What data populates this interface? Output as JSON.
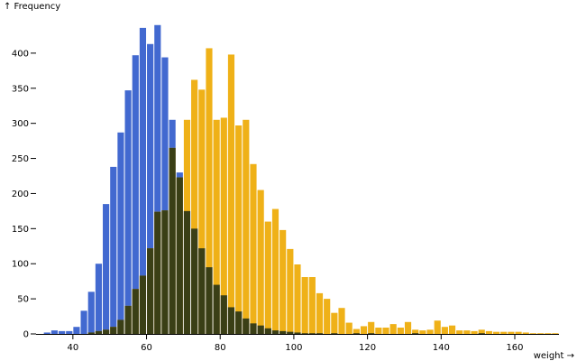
{
  "chart_data": {
    "type": "bar",
    "xlabel": "weight →",
    "ylabel": "↑ Frequency",
    "xlim": [
      30,
      172
    ],
    "ylim": [
      0,
      450
    ],
    "x_ticks": [
      40,
      60,
      80,
      100,
      120,
      140,
      160
    ],
    "y_ticks": [
      0,
      50,
      100,
      150,
      200,
      250,
      300,
      350,
      400
    ],
    "bin_width": 2,
    "bin_starts": [
      30,
      32,
      34,
      36,
      38,
      40,
      42,
      44,
      46,
      48,
      50,
      52,
      54,
      56,
      58,
      60,
      62,
      64,
      66,
      68,
      70,
      72,
      74,
      76,
      78,
      80,
      82,
      84,
      86,
      88,
      90,
      92,
      94,
      96,
      98,
      100,
      102,
      104,
      106,
      108,
      110,
      112,
      114,
      116,
      118,
      120,
      122,
      124,
      126,
      128,
      130,
      132,
      134,
      136,
      138,
      140,
      142,
      144,
      146,
      148,
      150,
      152,
      154,
      156,
      158,
      160,
      162,
      164,
      166,
      168,
      170
    ],
    "overlap_color": "#3a3f16",
    "series": [
      {
        "color": "#4269d0",
        "values": [
          0,
          2,
          5,
          4,
          4,
          10,
          33,
          60,
          100,
          185,
          238,
          287,
          347,
          397,
          436,
          413,
          440,
          394,
          305,
          230,
          175,
          150,
          122,
          95,
          70,
          55,
          38,
          32,
          22,
          15,
          12,
          8,
          5,
          4,
          3,
          2,
          1,
          1,
          1,
          0,
          1,
          0,
          0,
          1,
          0,
          1,
          0,
          0,
          0,
          0,
          0,
          1,
          0,
          0,
          0,
          0,
          0,
          0,
          0,
          0,
          1,
          0,
          0,
          0,
          0,
          0,
          0,
          0,
          0,
          0,
          0
        ]
      },
      {
        "color": "#efb118",
        "values": [
          0,
          0,
          0,
          0,
          0,
          0,
          0,
          2,
          4,
          6,
          10,
          20,
          40,
          64,
          83,
          122,
          174,
          176,
          265,
          223,
          305,
          362,
          348,
          407,
          305,
          308,
          398,
          297,
          305,
          242,
          205,
          160,
          178,
          148,
          121,
          99,
          81,
          81,
          58,
          50,
          30,
          37,
          16,
          7,
          11,
          17,
          9,
          9,
          14,
          9,
          17,
          6,
          5,
          6,
          19,
          10,
          12,
          5,
          5,
          4,
          6,
          4,
          3,
          3,
          3,
          3,
          2,
          1,
          1,
          1,
          1
        ]
      }
    ]
  }
}
